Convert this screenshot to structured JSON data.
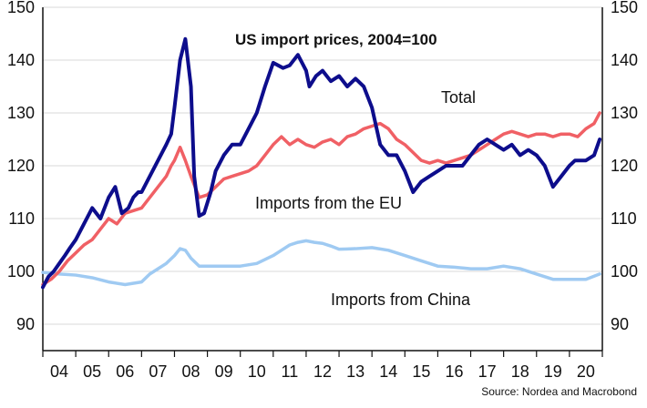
{
  "chart_data": {
    "type": "line",
    "title": "US import prices, 2004=100",
    "source": "Source: Nordea and Macrobond",
    "x_tick_labels": [
      "04",
      "05",
      "06",
      "07",
      "08",
      "09",
      "10",
      "11",
      "12",
      "13",
      "14",
      "15",
      "16",
      "17",
      "18",
      "19",
      "20"
    ],
    "xlim": [
      2004.0,
      2021.0
    ],
    "ylim": [
      85,
      150
    ],
    "y_ticks": [
      90,
      100,
      110,
      120,
      130,
      140,
      150
    ],
    "grid": "horizontal",
    "annotations": [
      {
        "text": "Total",
        "series": "Total"
      },
      {
        "text": "Imports from the EU",
        "series": "Imports from the EU"
      },
      {
        "text": "Imports from China",
        "series": "Imports from China"
      }
    ],
    "series": [
      {
        "name": "Total",
        "color": "#0d0d8c",
        "x": [
          2004.0,
          2004.17,
          2004.33,
          2004.5,
          2004.67,
          2004.83,
          2005.0,
          2005.25,
          2005.5,
          2005.75,
          2006.0,
          2006.2,
          2006.4,
          2006.6,
          2006.75,
          2006.9,
          2007.0,
          2007.25,
          2007.5,
          2007.75,
          2007.9,
          2008.0,
          2008.17,
          2008.33,
          2008.5,
          2008.6,
          2008.75,
          2008.9,
          2009.0,
          2009.1,
          2009.25,
          2009.5,
          2009.75,
          2010.0,
          2010.25,
          2010.5,
          2010.75,
          2011.0,
          2011.15,
          2011.3,
          2011.5,
          2011.75,
          2012.0,
          2012.1,
          2012.3,
          2012.5,
          2012.75,
          2013.0,
          2013.25,
          2013.5,
          2013.75,
          2014.0,
          2014.25,
          2014.5,
          2014.75,
          2015.0,
          2015.25,
          2015.5,
          2015.75,
          2016.0,
          2016.25,
          2016.5,
          2016.75,
          2017.0,
          2017.25,
          2017.5,
          2017.75,
          2018.0,
          2018.25,
          2018.5,
          2018.75,
          2019.0,
          2019.25,
          2019.5,
          2019.75,
          2020.0,
          2020.17,
          2020.33,
          2020.5,
          2020.75,
          2020.92
        ],
        "values": [
          97,
          99,
          100,
          101.5,
          103,
          104.5,
          106,
          109,
          112,
          110,
          114,
          116,
          111,
          112,
          114,
          115,
          115,
          118,
          121,
          124,
          126,
          131,
          140,
          144,
          135,
          118,
          110.5,
          111,
          113,
          115,
          119,
          122,
          124,
          124,
          127,
          130,
          135,
          139.5,
          139,
          138.5,
          139,
          141,
          138,
          135,
          137,
          138,
          136,
          137,
          135,
          136.5,
          135,
          131,
          124,
          122,
          122,
          119,
          115,
          117,
          118,
          119,
          120,
          120,
          120,
          122,
          124,
          125,
          124,
          123,
          124,
          122,
          123,
          122,
          120,
          116,
          118,
          120,
          121,
          121,
          121,
          122,
          125
        ]
      },
      {
        "name": "Imports from the EU",
        "color": "#f06065",
        "x": [
          2004.0,
          2004.25,
          2004.5,
          2004.75,
          2005.0,
          2005.25,
          2005.5,
          2005.75,
          2006.0,
          2006.25,
          2006.5,
          2006.75,
          2007.0,
          2007.25,
          2007.5,
          2007.75,
          2007.9,
          2008.0,
          2008.17,
          2008.33,
          2008.5,
          2008.75,
          2009.0,
          2009.25,
          2009.5,
          2009.75,
          2010.0,
          2010.25,
          2010.5,
          2010.75,
          2011.0,
          2011.25,
          2011.5,
          2011.75,
          2012.0,
          2012.25,
          2012.5,
          2012.75,
          2013.0,
          2013.25,
          2013.5,
          2013.75,
          2014.0,
          2014.25,
          2014.5,
          2014.75,
          2015.0,
          2015.25,
          2015.5,
          2015.75,
          2016.0,
          2016.25,
          2016.5,
          2016.75,
          2017.0,
          2017.25,
          2017.5,
          2017.75,
          2018.0,
          2018.25,
          2018.5,
          2018.75,
          2019.0,
          2019.25,
          2019.5,
          2019.75,
          2020.0,
          2020.25,
          2020.5,
          2020.75,
          2020.92
        ],
        "values": [
          97.5,
          98.5,
          100,
          102,
          103.5,
          105,
          106,
          108,
          110,
          109,
          111,
          111.5,
          112,
          114,
          116,
          118,
          120,
          121,
          123.5,
          121,
          118,
          114,
          114.5,
          116,
          117.5,
          118,
          118.5,
          119,
          120,
          122,
          124,
          125.5,
          124,
          125,
          124,
          123.5,
          124.5,
          125,
          124,
          125.5,
          126,
          127,
          127.5,
          128,
          127,
          125,
          124,
          122.5,
          121,
          120.5,
          121,
          120.5,
          121,
          121.5,
          122,
          123,
          124,
          125,
          126,
          126.5,
          126,
          125.5,
          126,
          126,
          125.5,
          126,
          126,
          125.5,
          127,
          128,
          130
        ]
      },
      {
        "name": "Imports from China",
        "color": "#9fcaf2",
        "x": [
          2004.0,
          2004.5,
          2005.0,
          2005.5,
          2006.0,
          2006.5,
          2007.0,
          2007.25,
          2007.5,
          2007.75,
          2008.0,
          2008.17,
          2008.33,
          2008.5,
          2008.75,
          2009.0,
          2009.5,
          2010.0,
          2010.5,
          2011.0,
          2011.25,
          2011.5,
          2011.75,
          2012.0,
          2012.25,
          2012.5,
          2012.75,
          2013.0,
          2013.5,
          2014.0,
          2014.5,
          2015.0,
          2015.5,
          2016.0,
          2016.5,
          2017.0,
          2017.5,
          2018.0,
          2018.5,
          2019.0,
          2019.5,
          2020.0,
          2020.5,
          2020.92
        ],
        "values": [
          99.8,
          99.5,
          99.3,
          98.8,
          98,
          97.5,
          98,
          99.5,
          100.5,
          101.5,
          103,
          104.3,
          104,
          102.5,
          101,
          101,
          101,
          101,
          101.5,
          103,
          104,
          105,
          105.5,
          105.8,
          105.5,
          105.3,
          104.8,
          104.2,
          104.3,
          104.5,
          104,
          103,
          102,
          101,
          100.8,
          100.5,
          100.5,
          101,
          100.5,
          99.5,
          98.5,
          98.5,
          98.5,
          99.5
        ]
      }
    ]
  }
}
